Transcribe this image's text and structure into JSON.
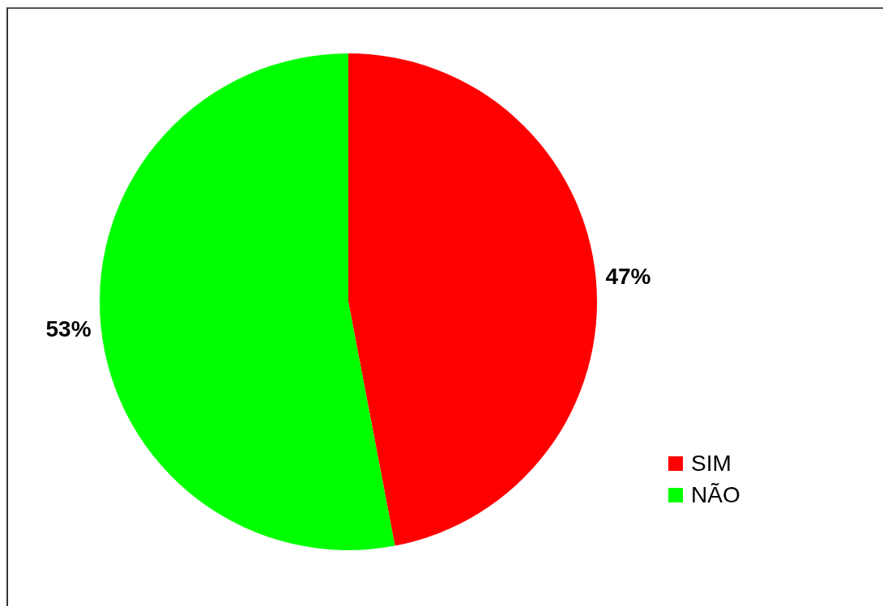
{
  "chart_data": {
    "type": "pie",
    "categories": [
      "SIM",
      "NÃO"
    ],
    "values": [
      47,
      53
    ],
    "colors": [
      "#ff0000",
      "#00ff00"
    ],
    "value_labels": [
      "47%",
      "53%"
    ],
    "legend": "right"
  }
}
